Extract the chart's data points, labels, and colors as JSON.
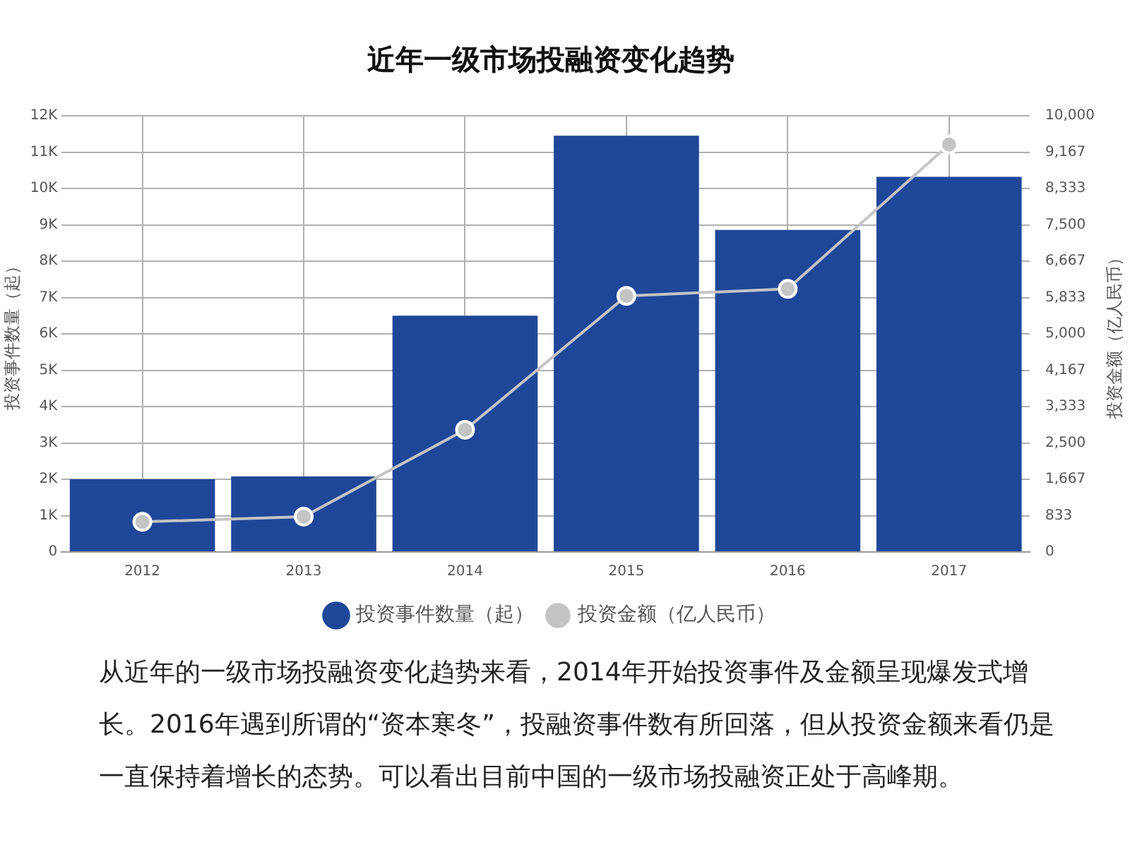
{
  "chart_data": {
    "type": "bar",
    "title": "近年一级市场投融资变化趋势",
    "ylabel": "投资事件数量（起）",
    "y2label": "投资金额（亿人民币）",
    "categories": [
      "2012",
      "2013",
      "2014",
      "2015",
      "2016",
      "2017"
    ],
    "series": [
      {
        "name": "投资事件数量（起）",
        "color": "#1f4799",
        "values": [
          2000,
          2080,
          6500,
          11450,
          8860,
          10320
        ]
      },
      {
        "name": "投资金额（亿人民币）",
        "type": "line",
        "axis": "y2",
        "color": "#c4c4c4",
        "values": [
          690,
          810,
          2800,
          5870,
          6030,
          9340
        ]
      }
    ],
    "ylim": [
      0,
      12000
    ],
    "yticks": [
      0,
      {
        "value": 1000,
        "label": "1K"
      },
      {
        "value": 2000,
        "label": "2K"
      },
      {
        "value": 3000,
        "label": "3K"
      },
      {
        "value": 4000,
        "label": "4K"
      },
      {
        "value": 5000,
        "label": "5K"
      },
      {
        "value": 6000,
        "label": "6K"
      },
      {
        "value": 7000,
        "label": "7K"
      },
      {
        "value": 8000,
        "label": "8K"
      },
      {
        "value": 9000,
        "label": "9K"
      },
      {
        "value": 10000,
        "label": "10K"
      },
      {
        "value": 11000,
        "label": "11K"
      },
      {
        "value": 12000,
        "label": "12K"
      }
    ],
    "y2lim": [
      0,
      10000
    ],
    "y2ticks": [
      0,
      833,
      {
        "value": 1667,
        "label": "1,667"
      },
      {
        "value": 2500,
        "label": "2,500"
      },
      {
        "value": 3333,
        "label": "3,333"
      },
      {
        "value": 4167,
        "label": "4,167"
      },
      {
        "value": 5000,
        "label": "5,000"
      },
      {
        "value": 5833,
        "label": "5,833"
      },
      {
        "value": 6667,
        "label": "6,667"
      },
      {
        "value": 7500,
        "label": "7,500"
      },
      {
        "value": 8333,
        "label": "8,333"
      },
      {
        "value": 9167,
        "label": "9,167"
      },
      {
        "value": 10000,
        "label": "10,000"
      }
    ],
    "grid": true,
    "legend": "bottom",
    "marker": "circle",
    "annotations": [
      "从近年的一级市场投融资变化趋势来看，2014年开始投资事件及金额呈现爆发式增长。2016年遇到所谓的“资本寒冬”，投融资事件数有所回落，但从投资金额来看仍是一直保持着增长的态势。可以看出目前中国的一级市场投融资正处于高峰期。"
    ]
  }
}
